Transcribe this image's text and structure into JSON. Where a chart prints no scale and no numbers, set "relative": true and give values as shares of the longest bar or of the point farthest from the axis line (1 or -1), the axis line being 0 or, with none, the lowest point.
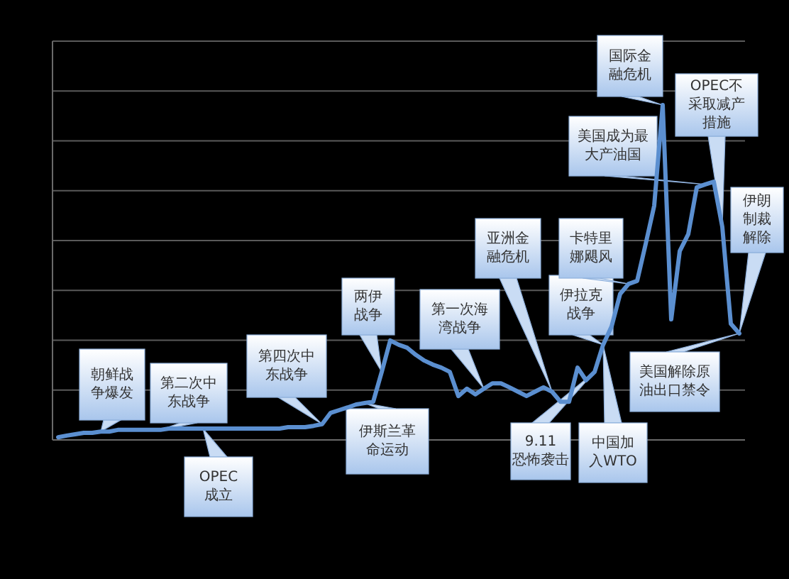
{
  "chart_data": {
    "type": "line",
    "relative": true,
    "grid": true,
    "categories": [
      null,
      null,
      null,
      null,
      null,
      null,
      null,
      null,
      null,
      null,
      null,
      null,
      null,
      null,
      null,
      null,
      null,
      null,
      null,
      null,
      null,
      null,
      null,
      null,
      null,
      null,
      null,
      null,
      null,
      null,
      null,
      null,
      null,
      null,
      null,
      null,
      null,
      null,
      null,
      null,
      null,
      null,
      null,
      null,
      null,
      null,
      null,
      null,
      null,
      null,
      null,
      null,
      null,
      null,
      null,
      null,
      null,
      null,
      null,
      null,
      null,
      null,
      null,
      null,
      null,
      null,
      null,
      null,
      null,
      null,
      null,
      null,
      null,
      null,
      null,
      null,
      null,
      null,
      null,
      null,
      null
    ],
    "series": [
      {
        "color": "#5b8fd0",
        "values": [
          0.008,
          0.013,
          0.017,
          0.021,
          0.021,
          0.025,
          0.025,
          0.03,
          0.03,
          0.03,
          0.03,
          0.03,
          0.03,
          0.034,
          0.034,
          0.034,
          0.034,
          0.034,
          0.034,
          0.034,
          0.034,
          0.034,
          0.034,
          0.034,
          0.034,
          0.034,
          0.034,
          0.038,
          0.038,
          0.038,
          0.042,
          0.047,
          0.081,
          0.089,
          0.097,
          0.106,
          0.11,
          0.114,
          0.203,
          0.297,
          0.284,
          0.275,
          0.254,
          0.237,
          0.225,
          0.216,
          0.203,
          0.131,
          0.153,
          0.136,
          0.153,
          0.169,
          0.169,
          0.157,
          0.144,
          0.131,
          0.144,
          0.157,
          0.144,
          0.114,
          0.114,
          0.216,
          0.178,
          0.203,
          0.284,
          0.339,
          0.436,
          0.466,
          0.475,
          0.585,
          0.699,
          1,
          0.36,
          0.564,
          0.614,
          0.754,
          0.763,
          0.771,
          0.636,
          0.347,
          0.318
        ]
      }
    ],
    "annotations": [
      "朝鲜战争爆发",
      "第二次中东战争",
      "OPEC成立",
      "第四次中东战争",
      "两伊战争",
      "伊斯兰革命运动",
      "第一次海湾战争",
      "亚洲金融危机",
      "9.11恐怖袭击",
      "伊拉克战争",
      "中国加入WTO",
      "卡特里娜飓风",
      "美国成为最大产油国",
      "国际金融危机",
      "OPEC不采取减产措施",
      "伊朗制裁解除",
      "美国解除原油出口禁令"
    ]
  }
}
